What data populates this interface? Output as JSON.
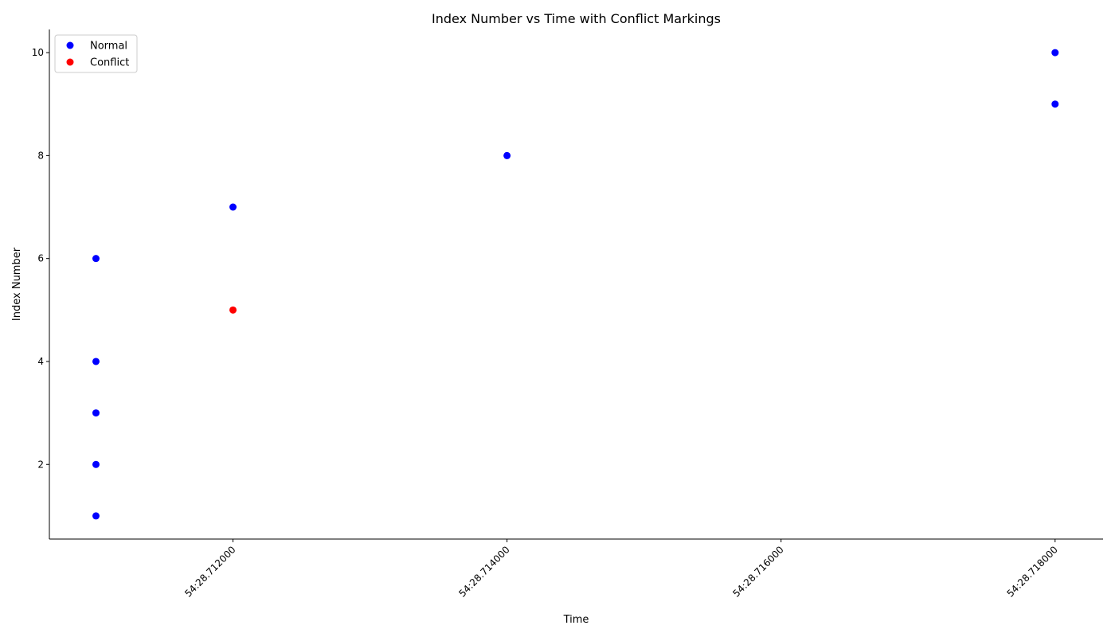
{
  "chart_data": {
    "type": "scatter",
    "title": "Index Number vs Time with Conflict Markings",
    "xlabel": "Time",
    "ylabel": "Index Number",
    "x_unit": "seconds within minute 54 (54:SS.ffffff)",
    "xlim": [
      28.71066,
      28.71835
    ],
    "ylim": [
      0.55,
      10.45
    ],
    "x_ticks": [
      28.712,
      28.714,
      28.716,
      28.718
    ],
    "x_tick_labels": [
      "54:28.712000",
      "54:28.714000",
      "54:28.716000",
      "54:28.718000"
    ],
    "y_ticks": [
      2,
      4,
      6,
      8,
      10
    ],
    "y_tick_labels": [
      "2",
      "4",
      "6",
      "8",
      "10"
    ],
    "grid": false,
    "legend_position": "upper-left",
    "series": [
      {
        "name": "Normal",
        "color": "#0000ff",
        "points": [
          {
            "x": 28.711,
            "y": 1
          },
          {
            "x": 28.711,
            "y": 2
          },
          {
            "x": 28.711,
            "y": 3
          },
          {
            "x": 28.711,
            "y": 4
          },
          {
            "x": 28.711,
            "y": 6
          },
          {
            "x": 28.712,
            "y": 7
          },
          {
            "x": 28.714,
            "y": 8
          },
          {
            "x": 28.718,
            "y": 9
          },
          {
            "x": 28.718,
            "y": 10
          }
        ]
      },
      {
        "name": "Conflict",
        "color": "#ff0000",
        "points": [
          {
            "x": 28.712,
            "y": 5
          }
        ]
      }
    ]
  }
}
